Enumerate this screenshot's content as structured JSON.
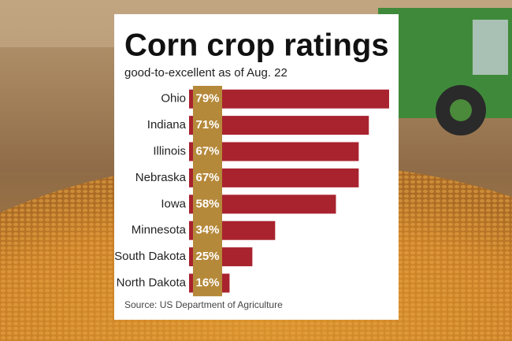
{
  "chart_data": {
    "type": "bar",
    "orientation": "horizontal",
    "title": "Corn crop ratings",
    "subtitle": "good-to-excellent as of Aug. 22",
    "source": "Source: US Department of Agriculture",
    "categories": [
      "Ohio",
      "Indiana",
      "Illinois",
      "Nebraska",
      "Iowa",
      "Minnesota",
      "South Dakota",
      "North Dakota"
    ],
    "values": [
      79,
      71,
      67,
      67,
      58,
      34,
      25,
      16
    ],
    "value_labels": [
      "79%",
      "71%",
      "67%",
      "67%",
      "58%",
      "34%",
      "25%",
      "16%"
    ],
    "color": "#a8232e",
    "label_color": "#b5893a",
    "xlim": [
      0,
      100
    ]
  }
}
